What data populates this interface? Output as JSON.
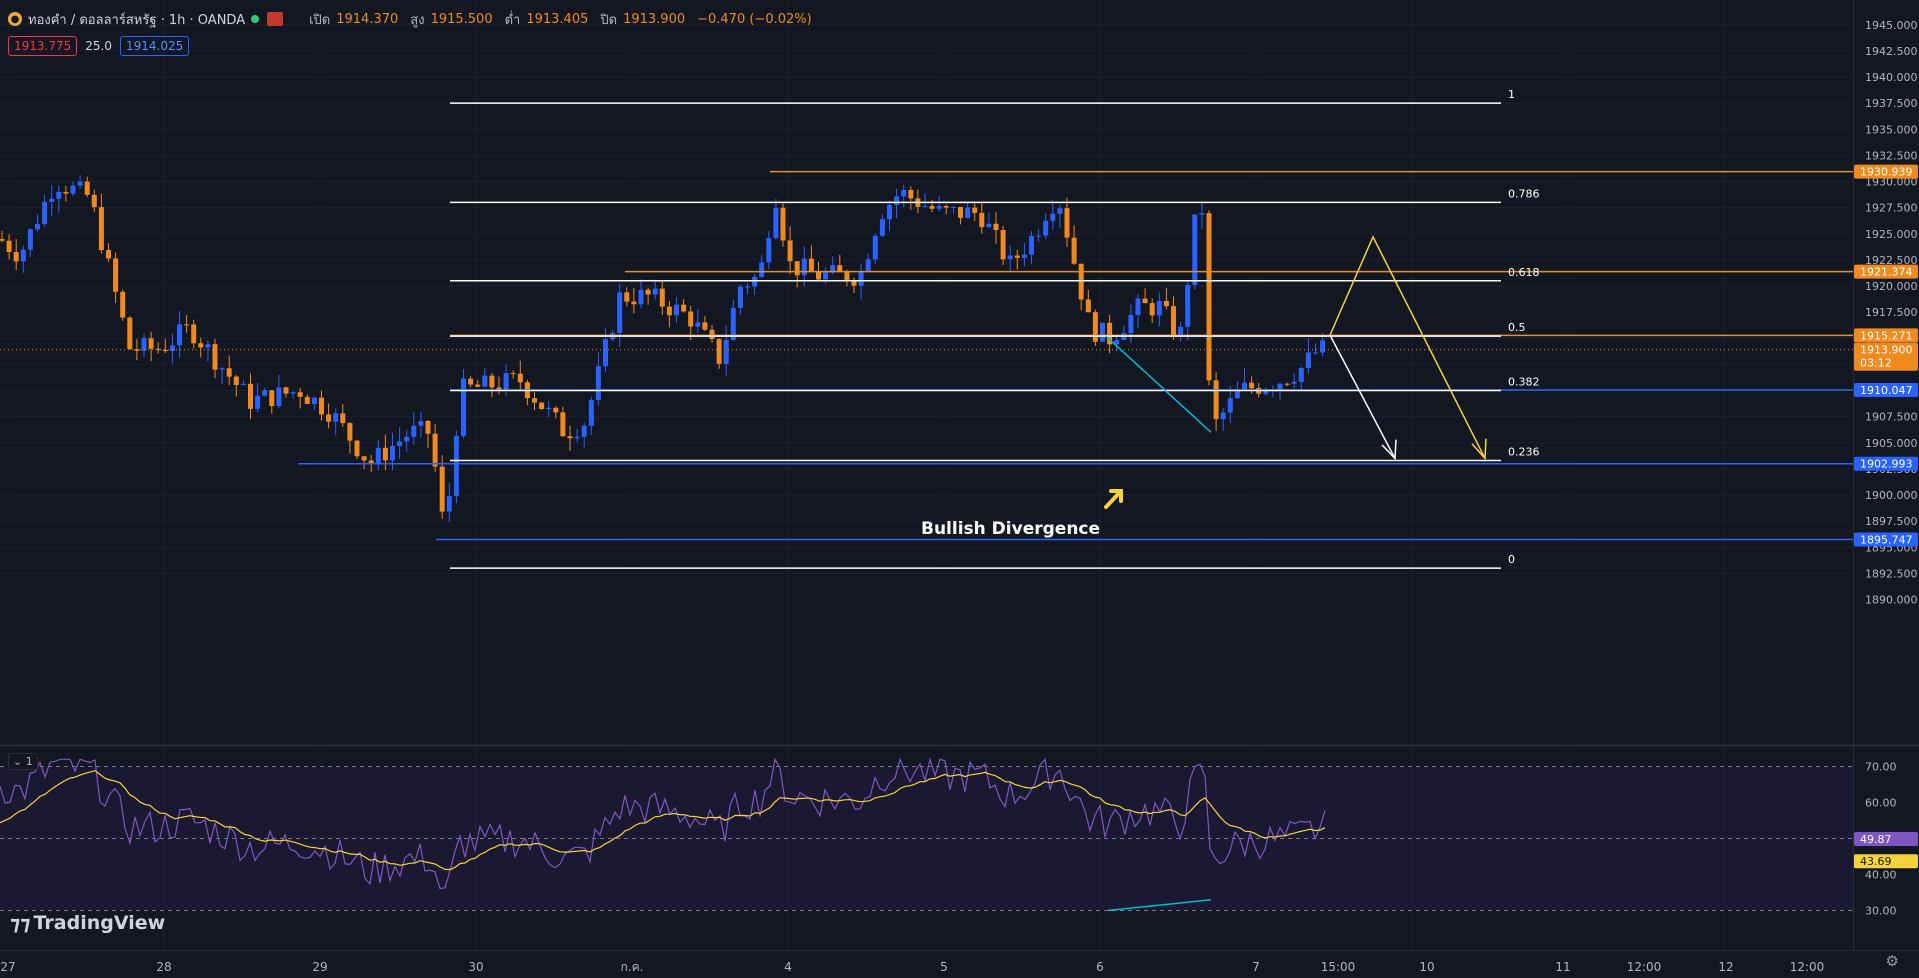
{
  "header": {
    "symbol": "ทองคำ / ดอลลาร์สหรัฐ · 1h · OANDA",
    "ohlc": [
      {
        "label": "เปิด",
        "value": "1914.370"
      },
      {
        "label": "สูง",
        "value": "1915.500"
      },
      {
        "label": "ต่ำ",
        "value": "1913.405"
      },
      {
        "label": "ปิด",
        "value": "1913.900"
      }
    ],
    "change": "−0.470 (−0.02%)",
    "sell_price": "1913.775",
    "spread": "25.0",
    "buy_price": "1914.025"
  },
  "price_axis": [
    "1945.000",
    "1942.500",
    "1940.000",
    "1937.500",
    "1935.000",
    "1932.500",
    "1930.000",
    "1927.500",
    "1925.000",
    "1922.500",
    "1920.000",
    "1917.500",
    "1915.000",
    "1912.500",
    "1910.000",
    "1907.500",
    "1905.000",
    "1902.500",
    "1900.000",
    "1897.500",
    "1895.000",
    "1892.500",
    "1890.000"
  ],
  "rsi_axis": [
    "70.00",
    "60.00",
    "50.00",
    "40.00",
    "30.00"
  ],
  "time_axis": [
    "27",
    "28",
    "29",
    "30",
    "ก.ค.",
    "4",
    "5",
    "6",
    "7",
    "15:00",
    "10",
    "11",
    "12:00",
    "12",
    "12:00"
  ],
  "price_labels": [
    {
      "value": "1930.939",
      "color": "#ef8a1f"
    },
    {
      "value": "1921.374",
      "color": "#ef8a1f"
    },
    {
      "value": "1915.271",
      "color": "#ef8a1f"
    },
    {
      "value": "1913.900",
      "color": "#ef8a1f",
      "sub": "03:12"
    },
    {
      "value": "1910.047",
      "color": "#2962ff"
    },
    {
      "value": "1902.993",
      "color": "#2962ff"
    },
    {
      "value": "1895.747",
      "color": "#2962ff"
    }
  ],
  "rsi_labels": [
    {
      "value": "49.87",
      "color": "#7e57c2"
    },
    {
      "value": "43.69",
      "color": "#f5d33b"
    }
  ],
  "fib_levels": [
    {
      "ratio": "1",
      "price": 1937.5
    },
    {
      "ratio": "0.786",
      "price": 1928.0
    },
    {
      "ratio": "0.618",
      "price": 1920.5
    },
    {
      "ratio": "0.5",
      "price": 1915.2
    },
    {
      "ratio": "0.382",
      "price": 1910.0
    },
    {
      "ratio": "0.236",
      "price": 1903.3
    },
    {
      "ratio": "0",
      "price": 1893.0
    }
  ],
  "annotation": "Bullish Divergence",
  "rsi_pane_tag": "1",
  "branding": "TradingView",
  "colors": {
    "background": "#131722",
    "bull": "#2962ff",
    "bear": "#ef8a1f",
    "fib": "#ffffff",
    "divergence": "#00bcd4",
    "projection": "#f5d33b",
    "rsi_line": "#7e57c2",
    "rsi_ma": "#f5d33b"
  }
}
